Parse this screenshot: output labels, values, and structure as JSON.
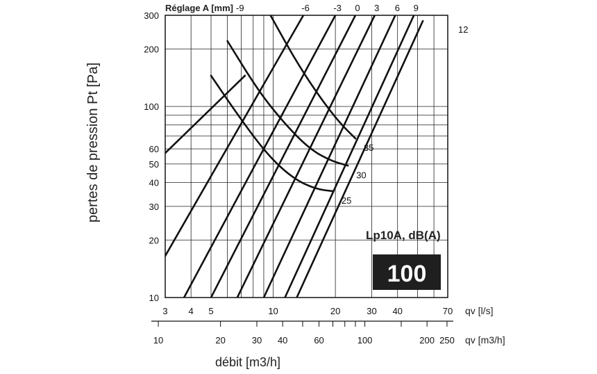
{
  "chart_data": {
    "type": "line",
    "x_axis": {
      "scale": "log",
      "unit_label": "qv [l/s]",
      "range": [
        3,
        70
      ],
      "ticks": [
        "3",
        "4",
        "5",
        "10",
        "20",
        "30",
        "40",
        "70"
      ]
    },
    "x_axis_secondary": {
      "scale": "log",
      "unit_label": "qv [m3/h]",
      "ticks": [
        "10",
        "20",
        "30",
        "40",
        "60",
        "100",
        "200",
        "250"
      ]
    },
    "y_axis": {
      "scale": "log",
      "range": [
        10,
        300
      ],
      "ticks": [
        "10",
        "20",
        "30",
        "40",
        "50",
        "60",
        "100",
        "200",
        "300"
      ]
    },
    "ylabel": "pertes de pression  Pt [Pa]",
    "xlabel": "débit [m3/h]",
    "settings_title": "Réglage A [mm]",
    "setting_lines": [
      {
        "name": "-9",
        "points": [
          [
            3.0,
            57
          ],
          [
            7.3,
            145
          ]
        ]
      },
      {
        "name": "-6",
        "points": [
          [
            3.0,
            16.5
          ],
          [
            14.0,
            300
          ]
        ]
      },
      {
        "name": "-3",
        "points": [
          [
            3.7,
            10
          ],
          [
            20.0,
            300
          ]
        ]
      },
      {
        "name": "0",
        "points": [
          [
            5.0,
            10
          ],
          [
            25.0,
            300
          ]
        ]
      },
      {
        "name": "3",
        "points": [
          [
            6.7,
            10
          ],
          [
            31.0,
            300
          ]
        ]
      },
      {
        "name": "6",
        "points": [
          [
            9.0,
            10
          ],
          [
            39.0,
            300
          ]
        ]
      },
      {
        "name": "9",
        "points": [
          [
            11.4,
            10
          ],
          [
            48.0,
            300
          ]
        ]
      },
      {
        "name": "12",
        "points": [
          [
            13.0,
            10
          ],
          [
            53.0,
            280
          ]
        ]
      }
    ],
    "noise_curves": [
      {
        "label": "25",
        "points": [
          [
            5.0,
            145
          ],
          [
            7.0,
            85
          ],
          [
            9.5,
            55
          ],
          [
            12.5,
            42
          ],
          [
            16.0,
            37
          ],
          [
            19.5,
            36
          ]
        ]
      },
      {
        "label": "30",
        "points": [
          [
            6.0,
            220
          ],
          [
            8.5,
            120
          ],
          [
            11.5,
            80
          ],
          [
            15.0,
            60
          ],
          [
            19.0,
            52
          ],
          [
            23.0,
            49
          ]
        ]
      },
      {
        "label": "35",
        "points": [
          [
            9.7,
            300
          ],
          [
            13.0,
            170
          ],
          [
            17.0,
            110
          ],
          [
            21.0,
            82
          ],
          [
            25.0,
            68
          ]
        ]
      }
    ],
    "legend_title": "Lp10A, dB(A)",
    "legend_value": "100"
  }
}
